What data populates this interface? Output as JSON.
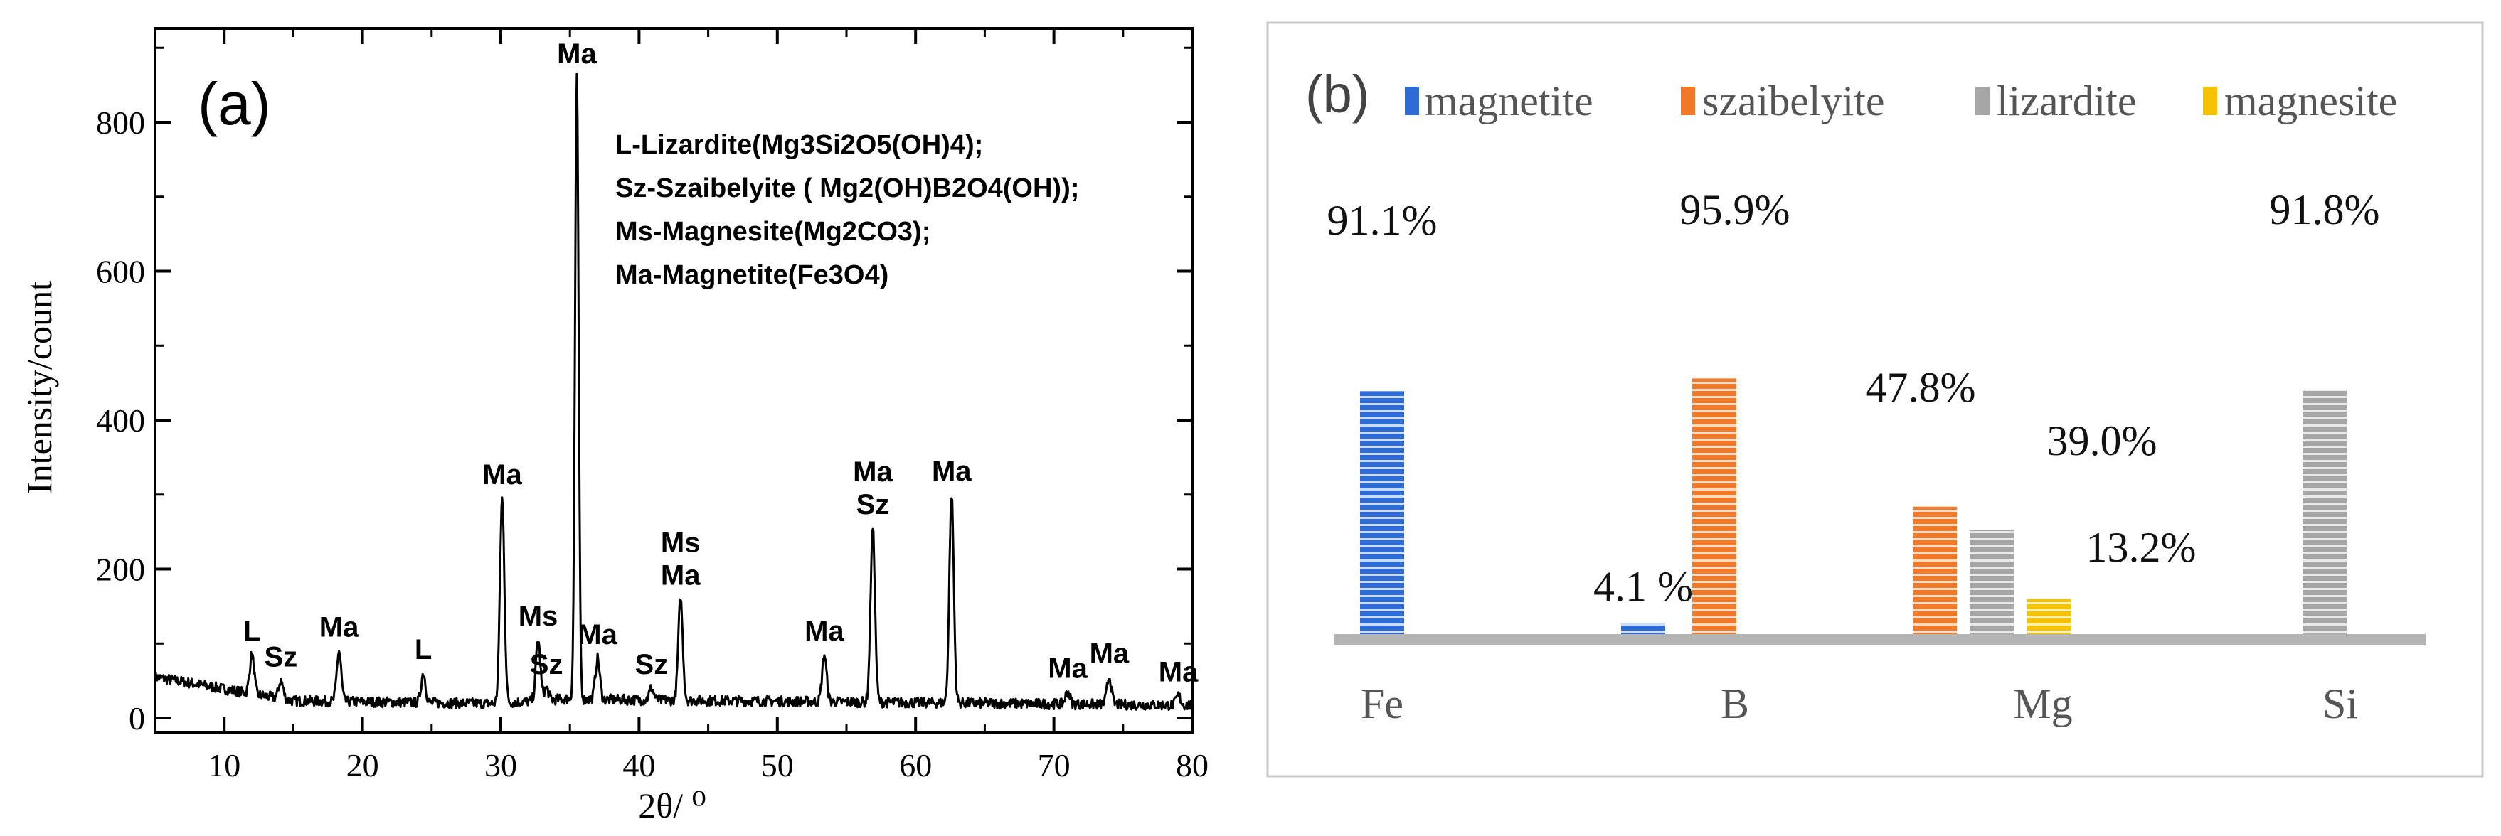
{
  "colors": {
    "magnetite": "#2e6bd6",
    "szaibelyite": "#f07a2a",
    "lizardite": "#a6a6a6",
    "magnesite": "#f5c200",
    "baseline": "#b4b4b4",
    "panel_border": "#c8c8c8"
  },
  "chart_data": [
    {
      "panel_label": "(a)",
      "type": "line",
      "title": "",
      "xlabel": "2θ/ ⁰",
      "ylabel": "Intensity/count",
      "xlim": [
        5,
        80
      ],
      "ylim": [
        0,
        900
      ],
      "x_ticks": [
        "10",
        "20",
        "30",
        "40",
        "50",
        "60",
        "70",
        "80"
      ],
      "y_ticks": [
        "0",
        "200",
        "400",
        "600",
        "800"
      ],
      "legend_lines": [
        "L-Lizardite(Mg3Si2O5(OH)4);",
        "Sz-Szaibelyite ( Mg2(OH)B2O4(OH));",
        "Ms-Magnesite(Mg2CO3);",
        "Ma-Magnetite(Fe3O4)"
      ],
      "peaks": [
        {
          "x": 12.0,
          "y": 85,
          "label": "L"
        },
        {
          "x": 14.1,
          "y": 50,
          "label": "Sz"
        },
        {
          "x": 18.3,
          "y": 90,
          "label": "Ma"
        },
        {
          "x": 24.4,
          "y": 60,
          "label": "L"
        },
        {
          "x": 30.1,
          "y": 295,
          "label": "Ma"
        },
        {
          "x": 32.7,
          "y": 105,
          "label": "Ms"
        },
        {
          "x": 33.3,
          "y": 40,
          "label": "Sz"
        },
        {
          "x": 35.5,
          "y": 860,
          "label": "Ma"
        },
        {
          "x": 37.0,
          "y": 80,
          "label": "Ma"
        },
        {
          "x": 40.9,
          "y": 40,
          "label": "Sz"
        },
        {
          "x": 43.0,
          "y": 160,
          "label": "Ms\nMa"
        },
        {
          "x": 53.4,
          "y": 85,
          "label": "Ma"
        },
        {
          "x": 56.9,
          "y": 255,
          "label": "Ma\nSz"
        },
        {
          "x": 62.6,
          "y": 300,
          "label": "Ma"
        },
        {
          "x": 71.0,
          "y": 35,
          "label": "Ma"
        },
        {
          "x": 74.0,
          "y": 55,
          "label": "Ma"
        },
        {
          "x": 79.0,
          "y": 30,
          "label": "Ma"
        }
      ]
    },
    {
      "panel_label": "(b)",
      "type": "bar",
      "title": "",
      "categories": [
        "Fe",
        "B",
        "Mg",
        "Si"
      ],
      "series": [
        {
          "name": "magnetite",
          "values": [
            91.1,
            4.1,
            0,
            0
          ],
          "labels": [
            "91.1%",
            "4.1 %",
            "",
            ""
          ]
        },
        {
          "name": "szaibelyite",
          "values": [
            0,
            95.9,
            47.8,
            0
          ],
          "labels": [
            "",
            "95.9%",
            "47.8%",
            ""
          ]
        },
        {
          "name": "lizardite",
          "values": [
            0,
            0,
            39.0,
            91.8
          ],
          "labels": [
            "",
            "",
            "39.0%",
            "91.8%"
          ]
        },
        {
          "name": "magnesite",
          "values": [
            0,
            0,
            13.2,
            0
          ],
          "labels": [
            "",
            "",
            "13.2%",
            ""
          ]
        }
      ],
      "legend_position": "top"
    }
  ]
}
